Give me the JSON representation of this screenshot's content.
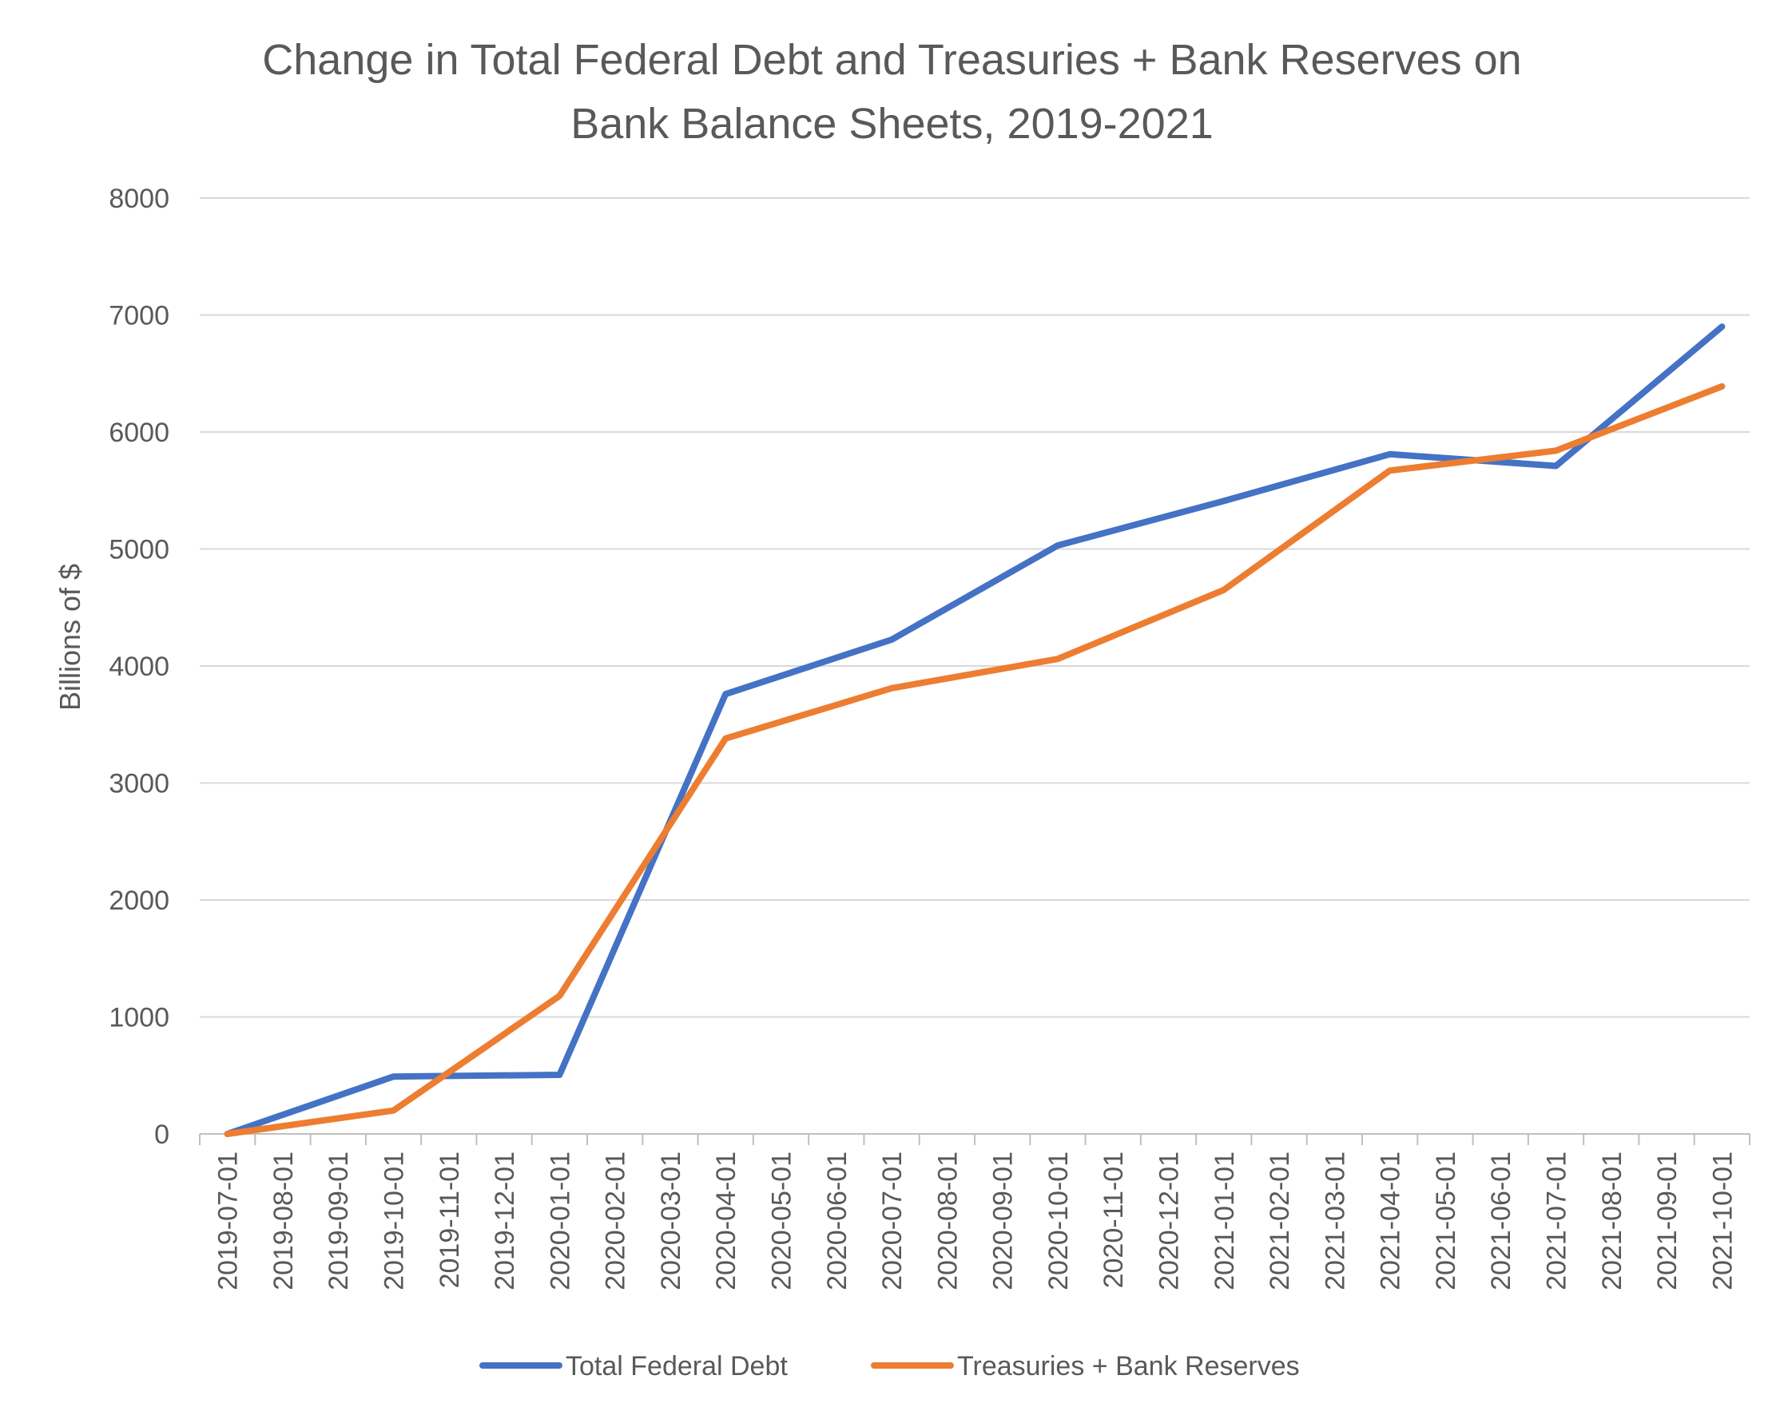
{
  "chart_data": {
    "type": "line",
    "title_line1": "Change in Total Federal Debt and Treasuries + Bank Reserves on",
    "title_line2": "Bank Balance Sheets, 2019-2021",
    "xlabel": "",
    "ylabel": "Billions of $",
    "ylim": [
      0,
      8000
    ],
    "yticks": [
      "0",
      "1000",
      "2000",
      "3000",
      "4000",
      "5000",
      "6000",
      "7000",
      "8000"
    ],
    "grid": true,
    "legend_position": "bottom",
    "categories": [
      "2019-07-01",
      "2019-08-01",
      "2019-09-01",
      "2019-10-01",
      "2019-11-01",
      "2019-12-01",
      "2020-01-01",
      "2020-02-01",
      "2020-03-01",
      "2020-04-01",
      "2020-05-01",
      "2020-06-01",
      "2020-07-01",
      "2020-08-01",
      "2020-09-01",
      "2020-10-01",
      "2020-11-01",
      "2020-12-01",
      "2021-01-01",
      "2021-02-01",
      "2021-03-01",
      "2021-04-01",
      "2021-05-01",
      "2021-06-01",
      "2021-07-01",
      "2021-08-01",
      "2021-09-01",
      "2021-10-01"
    ],
    "series": [
      {
        "name": "Total Federal Debt",
        "color": "#4472C4",
        "points": [
          [
            0,
            0
          ],
          [
            3,
            490
          ],
          [
            6,
            505
          ],
          [
            9,
            3760
          ],
          [
            12,
            4225
          ],
          [
            15,
            5030
          ],
          [
            18,
            5410
          ],
          [
            21,
            5810
          ],
          [
            24,
            5710
          ],
          [
            27,
            6900
          ]
        ]
      },
      {
        "name": "Treasuries + Bank Reserves",
        "color": "#ED7D31",
        "points": [
          [
            0,
            0
          ],
          [
            3,
            200
          ],
          [
            6,
            1180
          ],
          [
            9,
            3380
          ],
          [
            12,
            3810
          ],
          [
            15,
            4060
          ],
          [
            18,
            4650
          ],
          [
            21,
            5670
          ],
          [
            24,
            5840
          ],
          [
            27,
            6390
          ]
        ]
      }
    ]
  }
}
